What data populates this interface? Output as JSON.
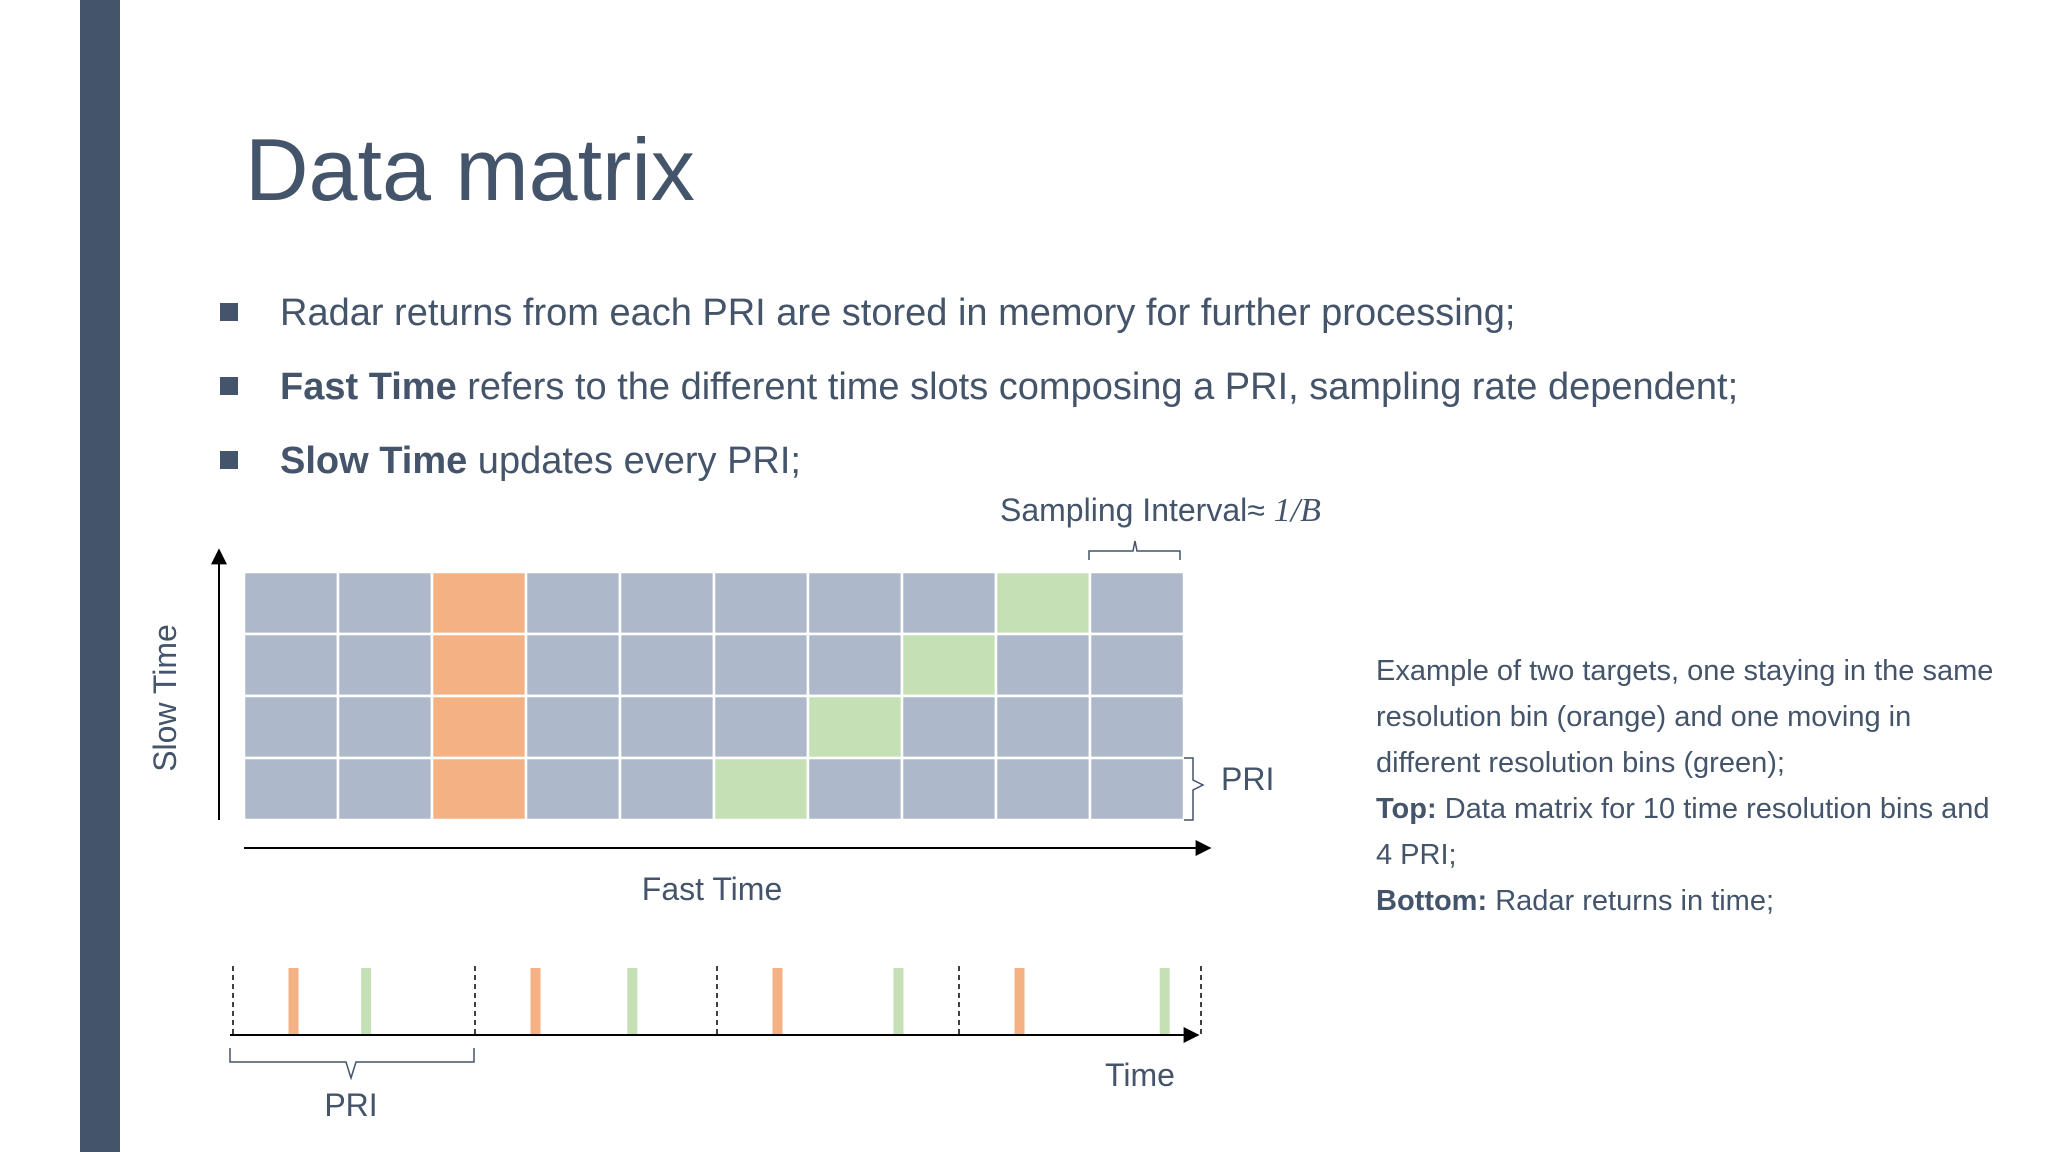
{
  "slide": {
    "title": "Data matrix",
    "bullets": [
      {
        "bold": "",
        "text": "Radar returns from each PRI are stored in memory for further processing;"
      },
      {
        "bold": "Fast Time",
        "text": " refers to the different time slots composing a PRI, sampling rate dependent;"
      },
      {
        "bold": "Slow Time",
        "text": " updates every PRI;"
      }
    ],
    "caption": {
      "intro": "Example of two targets, one staying in the same resolution bin (orange) and one moving in different resolution bins (green);",
      "top_label": "Top:",
      "top_text": " Data matrix for 10 time resolution bins and 4 PRI;",
      "bottom_label": "Bottom:",
      "bottom_text": " Radar returns in time;"
    }
  },
  "matrix": {
    "columns": 10,
    "rows": 4,
    "orange_column": 3,
    "green_cells": [
      {
        "row": 1,
        "col": 9
      },
      {
        "row": 2,
        "col": 8
      },
      {
        "row": 3,
        "col": 7
      },
      {
        "row": 4,
        "col": 6
      }
    ],
    "labels": {
      "sampling_interval_prefix": "Sampling Interval≈ ",
      "sampling_interval_math": "1/B",
      "pri": "PRI",
      "fast_time": "Fast Time",
      "slow_time": "Slow Time"
    }
  },
  "timeline": {
    "labels": {
      "pri": "PRI",
      "time": "Time"
    }
  },
  "colors": {
    "accent": "#44546a",
    "cell": "#adb9ca",
    "orange": "#f4b183",
    "green": "#c5e0b4",
    "grid_line": "#ffffff"
  }
}
